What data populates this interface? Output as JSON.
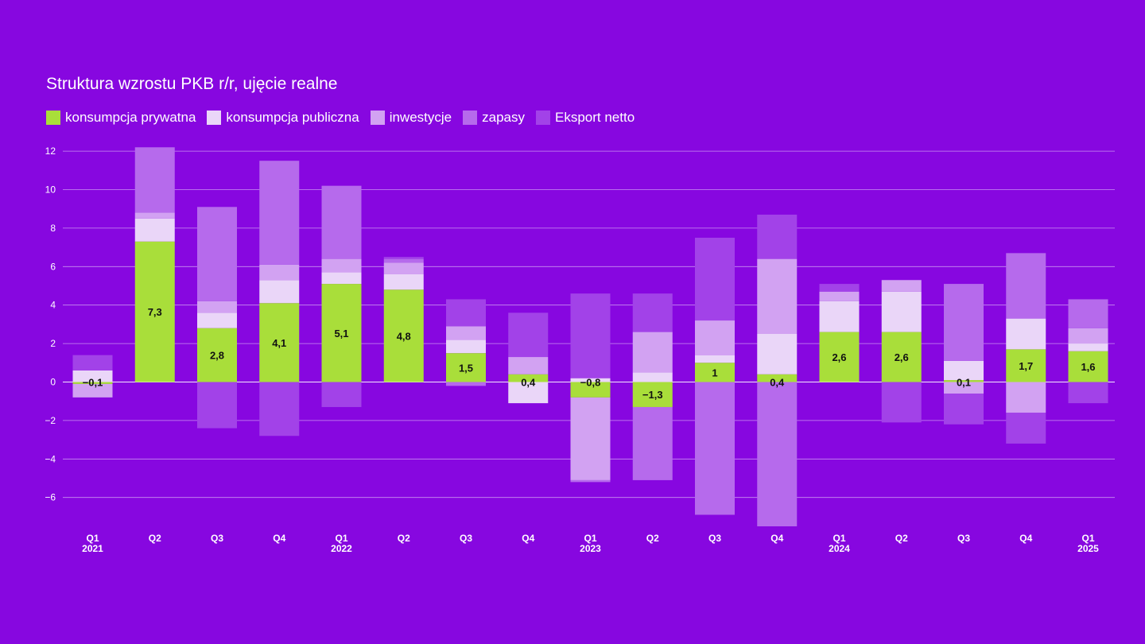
{
  "colors": {
    "background": "#8707e0",
    "consumption_private": "#a9de3a",
    "consumption_public": "#ead6f8",
    "investment": "#d2a2f2",
    "inventories": "#b66aec",
    "net_exports": "#a242e8"
  },
  "chart_data": {
    "type": "bar",
    "stacked": true,
    "title": "Struktura wzrostu PKB r/r, ujęcie realne",
    "xlabel": "",
    "ylabel": "",
    "ylim": [
      -7.5,
      12.5
    ],
    "yticks": [
      -6,
      -4,
      -2,
      0,
      2,
      4,
      6,
      8,
      10,
      12
    ],
    "grid": true,
    "legend_position": "top-left",
    "categories": [
      {
        "quarter": "Q1",
        "year": "2021"
      },
      {
        "quarter": "Q2",
        "year": ""
      },
      {
        "quarter": "Q3",
        "year": ""
      },
      {
        "quarter": "Q4",
        "year": ""
      },
      {
        "quarter": "Q1",
        "year": "2022"
      },
      {
        "quarter": "Q2",
        "year": ""
      },
      {
        "quarter": "Q3",
        "year": ""
      },
      {
        "quarter": "Q4",
        "year": ""
      },
      {
        "quarter": "Q1",
        "year": "2023"
      },
      {
        "quarter": "Q2",
        "year": ""
      },
      {
        "quarter": "Q3",
        "year": ""
      },
      {
        "quarter": "Q4",
        "year": ""
      },
      {
        "quarter": "Q1",
        "year": "2024"
      },
      {
        "quarter": "Q2",
        "year": ""
      },
      {
        "quarter": "Q3",
        "year": ""
      },
      {
        "quarter": "Q4",
        "year": ""
      },
      {
        "quarter": "Q1",
        "year": "2025"
      }
    ],
    "series": [
      {
        "name": "konsumpcja prywatna",
        "key": "consumption_private",
        "values": [
          -0.1,
          7.3,
          2.8,
          4.1,
          5.1,
          4.8,
          1.5,
          0.4,
          -0.8,
          -1.3,
          1.0,
          0.4,
          2.6,
          2.6,
          0.1,
          1.7,
          1.6
        ]
      },
      {
        "name": "konsumpcja publiczna",
        "key": "consumption_public",
        "values": [
          0.6,
          1.2,
          0.8,
          1.2,
          0.6,
          0.8,
          0.7,
          -1.1,
          0.2,
          0.5,
          0.4,
          2.1,
          1.6,
          2.1,
          1.0,
          1.6,
          0.4
        ]
      },
      {
        "name": "inwestycje",
        "key": "investment",
        "values": [
          -0.7,
          0.3,
          0.6,
          0.8,
          0.7,
          0.6,
          0.7,
          0.9,
          -4.3,
          2.1,
          1.8,
          3.9,
          0.5,
          0.6,
          -0.6,
          -1.6,
          0.8
        ]
      },
      {
        "name": "zapasy",
        "key": "inventories",
        "values": [
          0.0,
          3.4,
          4.9,
          5.4,
          3.8,
          0.2,
          -0.2,
          0.0,
          -0.1,
          -3.8,
          -6.9,
          -7.5,
          0.0,
          0.0,
          4.0,
          3.4,
          1.5
        ]
      },
      {
        "name": "Eksport netto",
        "key": "net_exports",
        "values": [
          0.8,
          0.0,
          -2.4,
          -2.8,
          -1.3,
          0.1,
          1.4,
          2.3,
          4.4,
          2.0,
          4.3,
          2.3,
          0.4,
          -2.1,
          -1.6,
          -1.6,
          -1.1
        ]
      }
    ],
    "data_labels": [
      "−0,1",
      "7,3",
      "2,8",
      "4,1",
      "5,1",
      "4,8",
      "1,5",
      "0,4",
      "−0,8",
      "−1,3",
      "1",
      "0,4",
      "2,6",
      "2,6",
      "0,1",
      "1,7",
      "1,6"
    ]
  }
}
